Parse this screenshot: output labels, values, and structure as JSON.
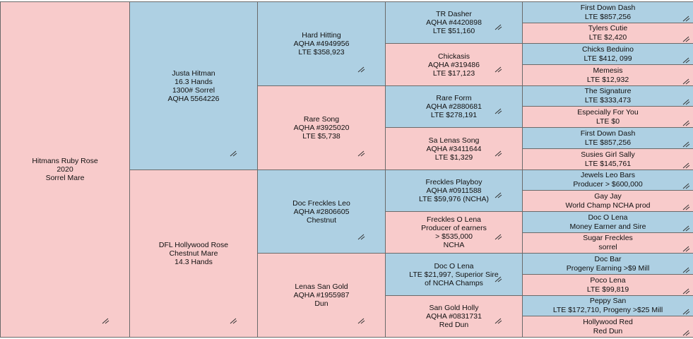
{
  "colors": {
    "sire_side": "#aed0e3",
    "dam_side": "#f8cbcb",
    "border": "#6a6a6a"
  },
  "icons": {
    "edit": "resize-grip-icon"
  },
  "pedigree": {
    "subject": {
      "lines": [
        "Hitmans Ruby Rose",
        "2020",
        "Sorrel Mare"
      ]
    },
    "gen1": [
      {
        "lines": [
          "Justa Hitman",
          "16.3 Hands",
          "1300# Sorrel",
          "AQHA 5564226"
        ]
      },
      {
        "lines": [
          "DFL Hollywood Rose",
          "Chestnut Mare",
          "14.3 Hands"
        ]
      }
    ],
    "gen2": [
      {
        "lines": [
          "Hard Hitting",
          "AQHA #4949956",
          "LTE $358,923"
        ]
      },
      {
        "lines": [
          "Rare Song",
          "AQHA #3925020",
          "LTE $5,738"
        ]
      },
      {
        "lines": [
          "Doc Freckles Leo",
          "AQHA #2806605",
          "Chestnut"
        ]
      },
      {
        "lines": [
          "Lenas San Gold",
          "AQHA #1955987",
          "Dun"
        ]
      }
    ],
    "gen3": [
      {
        "lines": [
          "TR Dasher",
          "AQHA #4420898",
          "LTE $51,160"
        ]
      },
      {
        "lines": [
          "Chickasis",
          "AQHA #319486",
          "LTE $17,123"
        ]
      },
      {
        "lines": [
          "Rare Form",
          "AQHA #2880681",
          "LTE $278,191"
        ]
      },
      {
        "lines": [
          "Sa Lenas Song",
          "AQHA #3411644",
          "LTE $1,329"
        ]
      },
      {
        "lines": [
          "Freckles Playboy",
          "AQHA #0911588",
          "LTE $59,976 (NCHA)"
        ]
      },
      {
        "lines": [
          "Freckles O Lena",
          "Producer of earners",
          "> $535,000",
          "NCHA"
        ]
      },
      {
        "lines": [
          "Doc O Lena",
          "LTE $21,997, Superior Sire",
          "of NCHA Champs"
        ]
      },
      {
        "lines": [
          "San Gold Holly",
          "AQHA #0831731",
          "Red Dun"
        ]
      }
    ],
    "gen4": [
      {
        "lines": [
          "First Down Dash",
          "LTE $857,256"
        ]
      },
      {
        "lines": [
          "Tylers Cutie",
          "LTE $2,420"
        ]
      },
      {
        "lines": [
          "Chicks Beduino",
          "LTE $412, 099"
        ]
      },
      {
        "lines": [
          "Memesis",
          "LTE $12,932"
        ]
      },
      {
        "lines": [
          "The Signature",
          "LTE $333,473"
        ]
      },
      {
        "lines": [
          "Especially For You",
          "LTE $0"
        ]
      },
      {
        "lines": [
          "First Down Dash",
          "LTE $857,256"
        ]
      },
      {
        "lines": [
          "Susies Girl Sally",
          "LTE $145,761"
        ]
      },
      {
        "lines": [
          "Jewels Leo Bars",
          "Producer > $600,000"
        ]
      },
      {
        "lines": [
          "Gay Jay",
          "World Champ NCHA prod"
        ]
      },
      {
        "lines": [
          "Doc O Lena",
          "Money Earner and Sire"
        ]
      },
      {
        "lines": [
          "Sugar Freckles",
          "sorrel"
        ]
      },
      {
        "lines": [
          "Doc Bar",
          "Progeny Earning >$9 Mill"
        ]
      },
      {
        "lines": [
          "Poco Lena",
          "LTE $99,819"
        ]
      },
      {
        "lines": [
          "Peppy San",
          "LTE $172,710, Progeny >$25 Mill"
        ]
      },
      {
        "lines": [
          "Hollywood Red",
          "Red Dun"
        ]
      }
    ]
  }
}
